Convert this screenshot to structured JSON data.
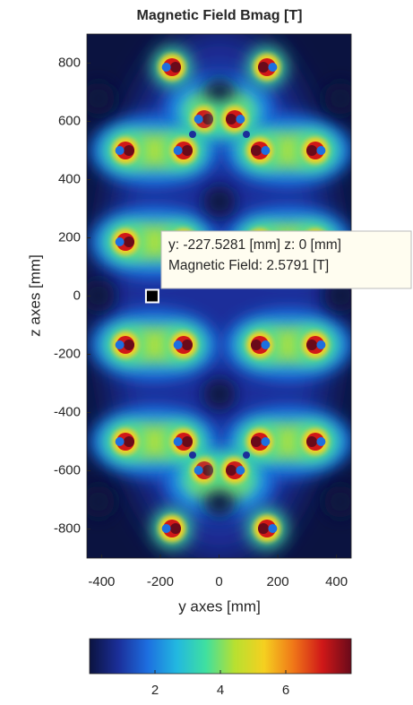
{
  "chart_data": {
    "type": "heatmap",
    "title": "Magnetic Field Bmag [T]",
    "xlabel": "y axes [mm]",
    "ylabel": "z axes [mm]",
    "xlim": [
      -450,
      450
    ],
    "ylim": [
      -900,
      900
    ],
    "xticks": [
      -400,
      -200,
      0,
      200,
      400
    ],
    "yticks": [
      -800,
      -600,
      -400,
      -200,
      0,
      200,
      400,
      600,
      800
    ],
    "colormap": [
      "#0b1340",
      "#1b2f9a",
      "#1d6fe0",
      "#22b8e0",
      "#3fe0a0",
      "#b8e030",
      "#f5d020",
      "#f07818",
      "#d01818",
      "#6a0a1a"
    ],
    "colorbar": {
      "clim": [
        0,
        8
      ],
      "ticks": [
        2,
        4,
        6
      ]
    },
    "datatip": {
      "x": -227.5281,
      "y": 0,
      "value": 2.5791,
      "lines": [
        "y: -227.5281 [mm] z: 0 [mm]",
        "Magnetic Field: 2.5791 [T]"
      ]
    }
  }
}
